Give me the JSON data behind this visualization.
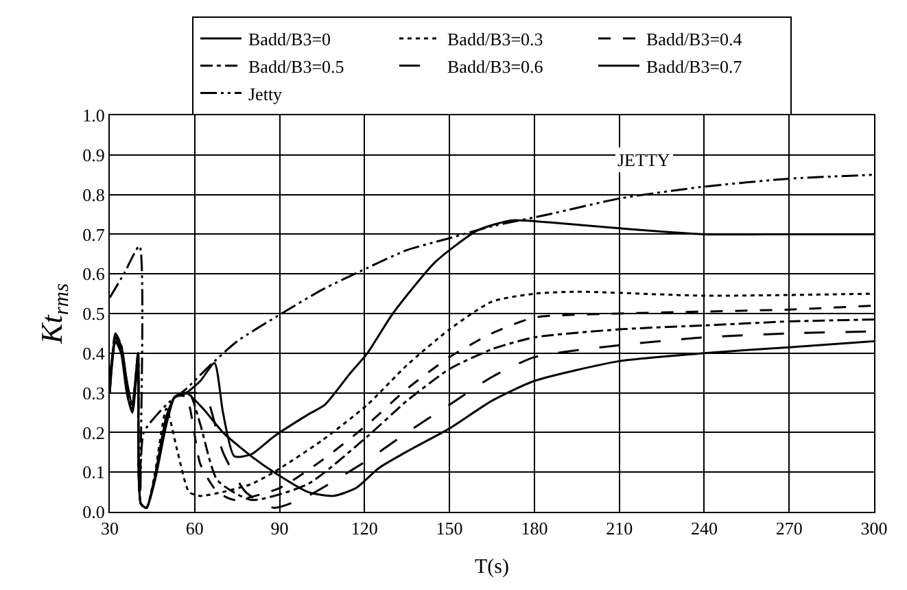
{
  "chart_data": {
    "type": "line",
    "xlabel": "T(s)",
    "ylabel": "Kt$_{rms}$",
    "xlim": [
      30,
      300
    ],
    "xticks": [
      30,
      60,
      90,
      120,
      150,
      180,
      210,
      240,
      270,
      300
    ],
    "ylim": [
      0,
      1
    ],
    "yticks": [
      {
        "value": 0,
        "label": "0.0"
      },
      0.1,
      0.2,
      0.3,
      0.4,
      0.5,
      0.6,
      0.7,
      0.8,
      0.9,
      {
        "value": 1,
        "label": "1.0"
      }
    ],
    "grid": true,
    "legend": "top",
    "marker": "none",
    "annotations": [
      "JETTY"
    ],
    "series": [
      {
        "name": "Badd/B3=0",
        "color": "#000000",
        "line_style": "solid",
        "x": [
          30,
          32,
          34,
          36,
          38,
          40,
          41,
          43,
          46,
          50,
          53,
          57,
          63,
          70,
          80,
          88,
          100,
          109,
          117,
          125,
          137,
          150,
          165,
          180,
          210,
          240,
          270,
          300
        ],
        "values": [
          0.3,
          0.43,
          0.4,
          0.3,
          0.25,
          0.38,
          0.02,
          0.01,
          0.09,
          0.24,
          0.29,
          0.3,
          0.26,
          0.2,
          0.14,
          0.1,
          0.05,
          0.04,
          0.06,
          0.11,
          0.16,
          0.21,
          0.28,
          0.33,
          0.38,
          0.4,
          0.415,
          0.43
        ]
      },
      {
        "name": "Badd/B3=0.3",
        "color": "#000000",
        "line_style": "dotted",
        "x": [
          30,
          32,
          34,
          36,
          38,
          40,
          41,
          43,
          46,
          50,
          54,
          58,
          62,
          70,
          80,
          88,
          105,
          121,
          135,
          150,
          165,
          180,
          195,
          240,
          300
        ],
        "values": [
          0.32,
          0.43,
          0.41,
          0.31,
          0.26,
          0.39,
          0.02,
          0.01,
          0.1,
          0.26,
          0.15,
          0.05,
          0.04,
          0.05,
          0.07,
          0.1,
          0.18,
          0.27,
          0.37,
          0.46,
          0.53,
          0.55,
          0.555,
          0.545,
          0.55
        ]
      },
      {
        "name": "Badd/B3=0.4",
        "color": "#000000",
        "line_style": "dashed",
        "x": [
          30,
          32,
          34,
          36,
          38,
          40,
          41,
          43,
          46,
          50,
          53,
          57,
          62,
          68,
          74,
          90,
          105,
          121,
          135,
          150,
          165,
          180,
          210,
          240,
          270,
          300
        ],
        "values": [
          0.31,
          0.44,
          0.41,
          0.32,
          0.26,
          0.39,
          0.02,
          0.01,
          0.09,
          0.24,
          0.29,
          0.29,
          0.12,
          0.05,
          0.03,
          0.06,
          0.13,
          0.22,
          0.31,
          0.39,
          0.45,
          0.49,
          0.5,
          0.505,
          0.51,
          0.52
        ]
      },
      {
        "name": "Badd/B3=0.5",
        "color": "#000000",
        "line_style": "dashdot",
        "x": [
          30,
          32,
          34,
          36,
          38,
          40,
          41,
          43,
          46,
          50,
          53,
          58,
          62,
          68,
          80,
          100,
          121,
          135,
          150,
          165,
          180,
          210,
          240,
          270,
          300
        ],
        "values": [
          0.3,
          0.44,
          0.42,
          0.32,
          0.27,
          0.4,
          0.02,
          0.01,
          0.09,
          0.24,
          0.29,
          0.3,
          0.22,
          0.08,
          0.03,
          0.07,
          0.19,
          0.28,
          0.36,
          0.41,
          0.44,
          0.46,
          0.47,
          0.48,
          0.485
        ]
      },
      {
        "name": "Badd/B3=0.6",
        "color": "#000000",
        "line_style": "longdash",
        "x": [
          30,
          32,
          34,
          36,
          38,
          40,
          41,
          43,
          46,
          50,
          53,
          60,
          64,
          70,
          78,
          88,
          100,
          121,
          135,
          150,
          165,
          180,
          210,
          240,
          270,
          300
        ],
        "values": [
          0.32,
          0.45,
          0.42,
          0.33,
          0.27,
          0.4,
          0.02,
          0.01,
          0.09,
          0.23,
          0.29,
          0.3,
          0.29,
          0.15,
          0.05,
          0.01,
          0.04,
          0.13,
          0.2,
          0.27,
          0.34,
          0.39,
          0.42,
          0.44,
          0.45,
          0.455
        ]
      },
      {
        "name": "Badd/B3=0.7",
        "color": "#000000",
        "line_style": "solid",
        "x": [
          30,
          32,
          34,
          36,
          38,
          40,
          41,
          43,
          46,
          50,
          53,
          57,
          62,
          67,
          70,
          74,
          80,
          88,
          100,
          106,
          115,
          121,
          130,
          145,
          160,
          172,
          185,
          210,
          240,
          270,
          300
        ],
        "values": [
          0.33,
          0.44,
          0.42,
          0.33,
          0.27,
          0.4,
          0.02,
          0.01,
          0.08,
          0.22,
          0.29,
          0.3,
          0.33,
          0.375,
          0.25,
          0.14,
          0.145,
          0.19,
          0.245,
          0.27,
          0.35,
          0.4,
          0.5,
          0.63,
          0.71,
          0.735,
          0.73,
          0.715,
          0.7,
          0.7,
          0.7
        ]
      },
      {
        "name": "Jetty",
        "color": "#000000",
        "line_style": "dashdotdot",
        "x": [
          30,
          35,
          40.5,
          40.8,
          42,
          50,
          57,
          64.8,
          75,
          90.7,
          105,
          121,
          135,
          150,
          165,
          185,
          210,
          240,
          270,
          300
        ],
        "values": [
          0.54,
          0.6,
          0.67,
          0.05,
          0.2,
          0.27,
          0.31,
          0.365,
          0.43,
          0.5,
          0.56,
          0.615,
          0.66,
          0.69,
          0.72,
          0.75,
          0.79,
          0.82,
          0.84,
          0.85
        ]
      }
    ]
  }
}
